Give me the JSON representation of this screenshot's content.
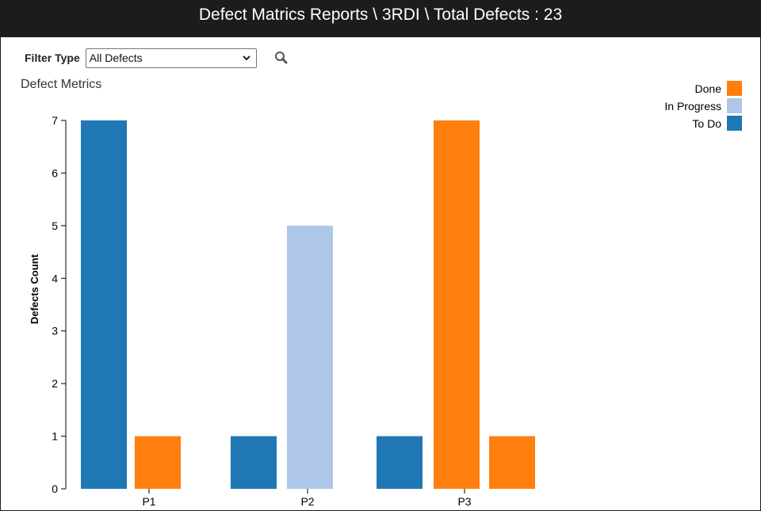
{
  "header": {
    "title": "Defect Matrics Reports \\ 3RDI \\ Total Defects : 23"
  },
  "filter": {
    "label": "Filter Type",
    "selected": "All Defects"
  },
  "icons": {
    "search": "search-icon",
    "dropdown": "chevron-down-icon"
  },
  "chart_data": {
    "type": "bar",
    "title": "Defect Metrics",
    "xlabel": "",
    "ylabel": "Defects Count",
    "ylim": [
      0,
      7
    ],
    "yticks": [
      0,
      1,
      2,
      3,
      4,
      5,
      6,
      7
    ],
    "categories": [
      "P1",
      "P2",
      "P3"
    ],
    "legend_position": "top-right",
    "legend": [
      {
        "name": "Done",
        "color": "#ff7f0e"
      },
      {
        "name": "In Progress",
        "color": "#aec7e8"
      },
      {
        "name": "To Do",
        "color": "#1f77b4"
      }
    ],
    "bars": [
      {
        "category": "P1",
        "status": "To Do",
        "value": 7
      },
      {
        "category": "P1",
        "status": "Done",
        "value": 1
      },
      {
        "category": "P2",
        "status": "To Do",
        "value": 1
      },
      {
        "category": "P2",
        "status": "In Progress",
        "value": 5
      },
      {
        "category": "P3",
        "status": "To Do",
        "value": 1
      },
      {
        "category": "P3",
        "status": "Done",
        "value": 7
      },
      {
        "category": "P3",
        "status": "Done",
        "value": 1
      }
    ]
  }
}
